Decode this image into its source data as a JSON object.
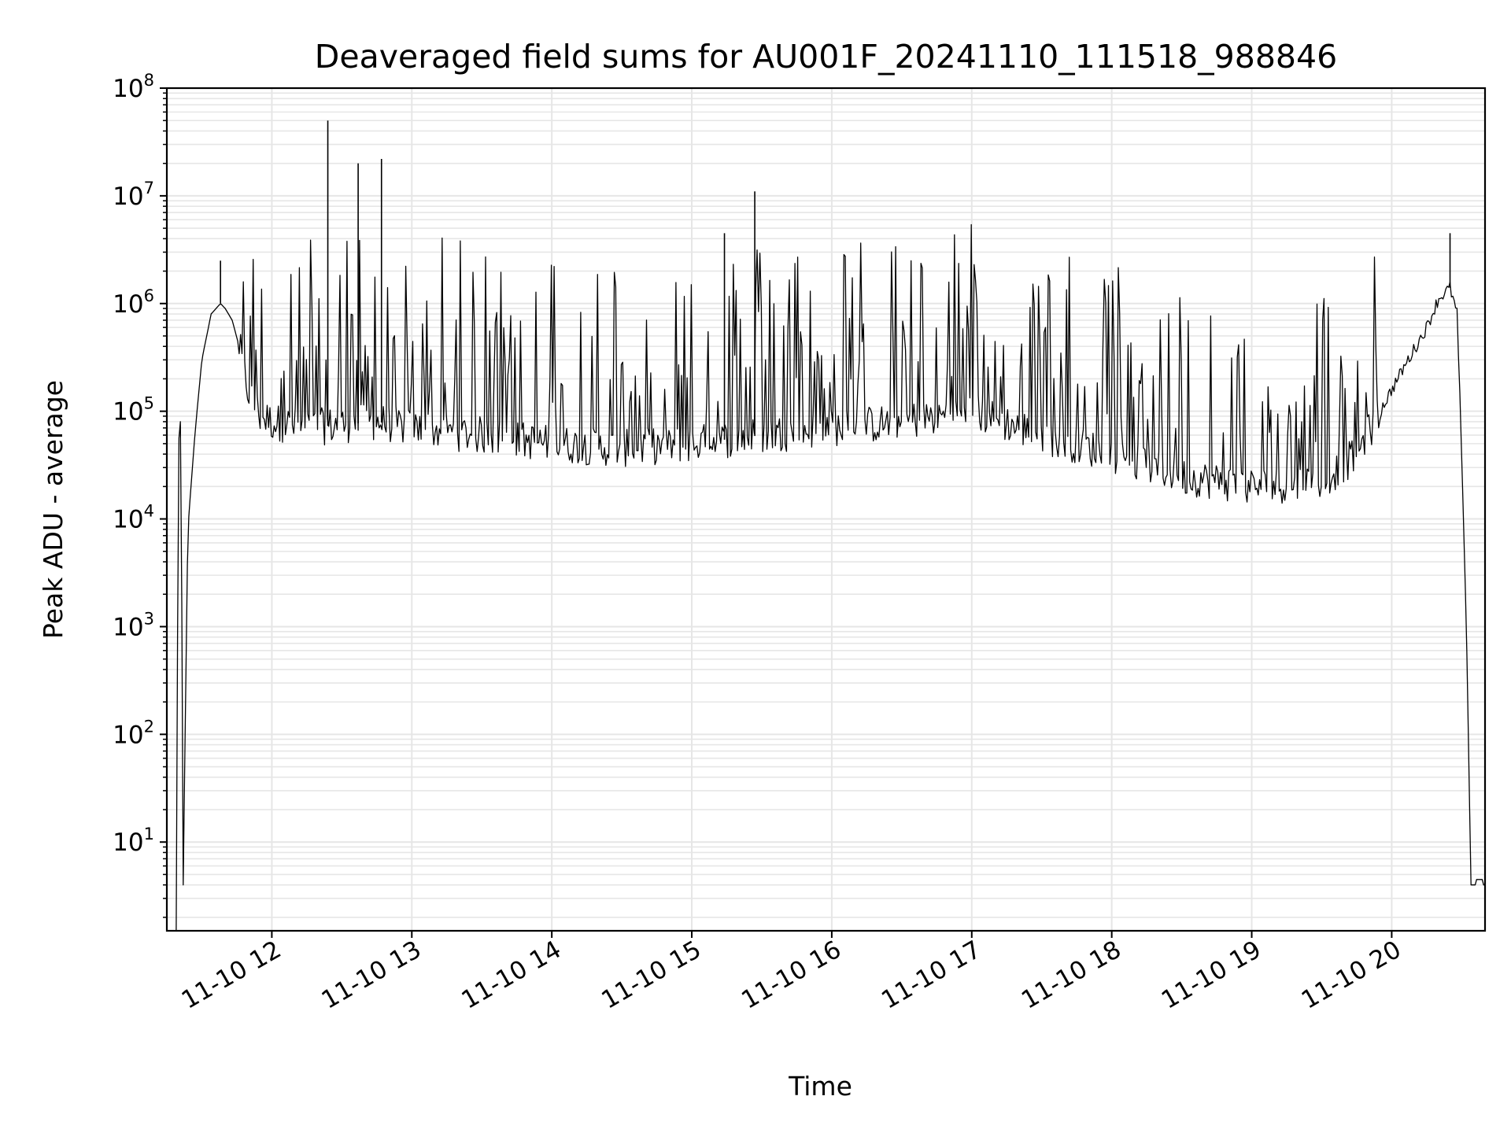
{
  "chart_data": {
    "type": "line",
    "title": "Deaveraged field sums for AU001F_20241110_111518_988846",
    "xlabel": "Time",
    "ylabel": "Peak ADU - average",
    "yscale": "log",
    "ylim": [
      1.5,
      100000000
    ],
    "xlim": [
      "2024-11-10 11:15",
      "2024-11-10 20:40"
    ],
    "grid": true,
    "x_ticks": [
      "11-10 12",
      "11-10 13",
      "11-10 14",
      "11-10 15",
      "11-10 16",
      "11-10 17",
      "11-10 18",
      "11-10 19",
      "11-10 20"
    ],
    "y_ticks": [
      {
        "base": "10",
        "exp": "1",
        "value": 10
      },
      {
        "base": "10",
        "exp": "2",
        "value": 100
      },
      {
        "base": "10",
        "exp": "3",
        "value": 1000
      },
      {
        "base": "10",
        "exp": "4",
        "value": 10000
      },
      {
        "base": "10",
        "exp": "5",
        "value": 100000
      },
      {
        "base": "10",
        "exp": "6",
        "value": 1000000
      },
      {
        "base": "10",
        "exp": "7",
        "value": 10000000
      },
      {
        "base": "10",
        "exp": "8",
        "value": 100000000
      }
    ],
    "line_color": "#000000",
    "grid_color": "#e6e6e6",
    "series": [
      {
        "x": [
          "2024-11-10 11:19",
          "2024-11-10 11:20",
          "2024-11-10 11:21",
          "2024-11-10 11:22",
          "2024-11-10 11:24",
          "2024-11-10 11:27",
          "2024-11-10 11:30",
          "2024-11-10 11:34",
          "2024-11-10 11:38",
          "2024-11-10 11:40",
          "2024-11-10 11:43",
          "2024-11-10 11:46",
          "2024-11-10 11:50",
          "2024-11-10 11:55",
          "2024-11-10 12:00",
          "2024-11-10 12:15",
          "2024-11-10 12:30",
          "2024-11-10 12:45",
          "2024-11-10 13:00",
          "2024-11-10 13:30",
          "2024-11-10 14:00",
          "2024-11-10 14:30",
          "2024-11-10 15:00",
          "2024-11-10 15:30",
          "2024-11-10 16:00",
          "2024-11-10 16:30",
          "2024-11-10 17:00",
          "2024-11-10 17:30",
          "2024-11-10 18:00",
          "2024-11-10 18:30",
          "2024-11-10 19:00",
          "2024-11-10 19:30",
          "2024-11-10 19:45",
          "2024-11-10 19:55",
          "2024-11-10 20:05",
          "2024-11-10 20:15",
          "2024-11-10 20:20",
          "2024-11-10 20:25",
          "2024-11-10 20:28",
          "2024-11-10 20:30",
          "2024-11-10 20:32",
          "2024-11-10 20:34",
          "2024-11-10 20:40"
        ],
        "y": [
          1.5,
          50000,
          90000,
          4,
          8000,
          60000,
          300000,
          800000,
          1000000,
          900000,
          700000,
          400000,
          150000,
          90000,
          80000,
          70000,
          75000,
          80000,
          70000,
          60000,
          50000,
          45000,
          50000,
          60000,
          70000,
          80000,
          100000,
          60000,
          40000,
          25000,
          20000,
          22000,
          40000,
          100000,
          250000,
          600000,
          1100000,
          1400000,
          800000,
          40000,
          1000,
          4,
          4
        ]
      }
    ],
    "spikes": [
      {
        "x": "2024-11-10 11:38",
        "y": 2500000
      },
      {
        "x": "2024-11-10 12:24",
        "y": 50000000
      },
      {
        "x": "2024-11-10 12:37",
        "y": 20000000
      },
      {
        "x": "2024-11-10 12:47",
        "y": 22000000
      },
      {
        "x": "2024-11-10 15:14",
        "y": 4500000
      },
      {
        "x": "2024-11-10 15:27",
        "y": 11000000
      },
      {
        "x": "2024-11-10 20:25",
        "y": 4500000
      }
    ]
  }
}
